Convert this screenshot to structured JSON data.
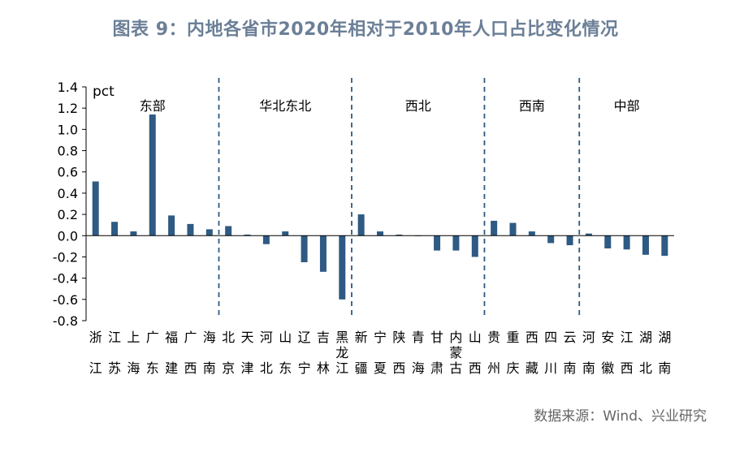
{
  "title": "图表 9：内地各省市2020年相对于2010年人口占比变化情况",
  "source": "数据来源：Wind、兴业研究",
  "chart_data": {
    "type": "bar",
    "ylabel": "pct",
    "ylim": [
      -0.8,
      1.4
    ],
    "yticks": [
      "1.4",
      "1.2",
      "1.0",
      "0.8",
      "0.6",
      "0.4",
      "0.2",
      "0.0",
      "-0.2",
      "-0.4",
      "-0.6",
      "-0.8"
    ],
    "bar_color": "#2e5a83",
    "categories": [
      "浙江",
      "江苏",
      "上海",
      "广东",
      "福建",
      "广西",
      "海南",
      "北京",
      "天津",
      "河北",
      "山东",
      "辽宁",
      "吉林",
      "黑龙江",
      "新疆",
      "宁夏",
      "陕西",
      "青海",
      "甘肃",
      "内蒙古",
      "山西",
      "贵州",
      "重庆",
      "西藏",
      "四川",
      "云南",
      "河南",
      "安徽",
      "江西",
      "湖北",
      "湖南"
    ],
    "category_lines": [
      [
        "浙",
        "江"
      ],
      [
        "江",
        "苏"
      ],
      [
        "上",
        "海"
      ],
      [
        "广",
        "东"
      ],
      [
        "福",
        "建"
      ],
      [
        "广",
        "西"
      ],
      [
        "海",
        "南"
      ],
      [
        "北",
        "京"
      ],
      [
        "天",
        "津"
      ],
      [
        "河",
        "北"
      ],
      [
        "山",
        "东"
      ],
      [
        "辽",
        "宁"
      ],
      [
        "吉",
        "林"
      ],
      [
        "黑",
        "龙",
        "江"
      ],
      [
        "新",
        "疆"
      ],
      [
        "宁",
        "夏"
      ],
      [
        "陕",
        "西"
      ],
      [
        "青",
        "海"
      ],
      [
        "甘",
        "肃"
      ],
      [
        "内",
        "蒙",
        "古"
      ],
      [
        "山",
        "西"
      ],
      [
        "贵",
        "州"
      ],
      [
        "重",
        "庆"
      ],
      [
        "西",
        "藏"
      ],
      [
        "四",
        "川"
      ],
      [
        "云",
        "南"
      ],
      [
        "河",
        "南"
      ],
      [
        "安",
        "徽"
      ],
      [
        "江",
        "西"
      ],
      [
        "湖",
        "北"
      ],
      [
        "湖",
        "南"
      ]
    ],
    "values": [
      0.51,
      0.13,
      0.04,
      1.14,
      0.19,
      0.11,
      0.06,
      0.09,
      0.01,
      -0.08,
      0.04,
      -0.25,
      -0.34,
      -0.6,
      0.2,
      0.04,
      0.01,
      0.0,
      -0.14,
      -0.14,
      -0.2,
      0.14,
      0.12,
      0.04,
      -0.07,
      -0.09,
      0.02,
      -0.12,
      -0.13,
      -0.18,
      -0.19
    ],
    "regions": [
      {
        "label": "东部",
        "start": 0,
        "end": 6
      },
      {
        "label": "华北东北",
        "start": 7,
        "end": 13
      },
      {
        "label": "西北",
        "start": 14,
        "end": 20
      },
      {
        "label": "西南",
        "start": 21,
        "end": 25
      },
      {
        "label": "中部",
        "start": 26,
        "end": 30
      }
    ]
  }
}
